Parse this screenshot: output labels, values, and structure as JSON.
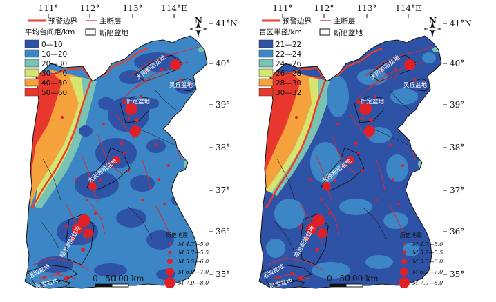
{
  "axes": {
    "lon_labels": [
      "111°",
      "112°",
      "113°",
      "114°E"
    ],
    "lat_labels": [
      "41°N",
      "40°",
      "39°",
      "38°",
      "37°",
      "36°",
      "35°"
    ]
  },
  "north_label": "N",
  "legend_common": {
    "warning_boundary": "预警边界",
    "main_fault": "主断层",
    "fault_basin": "断陷盆地"
  },
  "basins": [
    "大同断陷盆地",
    "灵丘盆地",
    "忻定盆地",
    "太原断陷盆地",
    "临汾断陷盆地",
    "运城盆地",
    "灵宝盆地"
  ],
  "eq_legend": {
    "title": "历史地震",
    "items": [
      "M 4.7—5.0",
      "M 5.7—5.5",
      "M 5.5—6.0",
      "M 6.0—7.0",
      "M 7.0—8.0"
    ]
  },
  "scale_bar": {
    "labels": [
      "0",
      "50",
      "100 km"
    ]
  },
  "panels": [
    {
      "title": "平均台间距/km",
      "classes": [
        {
          "label": "0—10",
          "color": "#2e52a6"
        },
        {
          "label": "10—20",
          "color": "#3d86c6"
        },
        {
          "label": "20—30",
          "color": "#79c3b3"
        },
        {
          "label": "30—40",
          "color": "#d6e470"
        },
        {
          "label": "40—50",
          "color": "#f5a23c"
        },
        {
          "label": "50—60",
          "color": "#e8372d"
        }
      ]
    },
    {
      "title": "盲区半径/km",
      "classes": [
        {
          "label": "21—22",
          "color": "#2e52a6"
        },
        {
          "label": "22—24",
          "color": "#3d86c6"
        },
        {
          "label": "24—26",
          "color": "#79c3b3"
        },
        {
          "label": "26—28",
          "color": "#d6e470"
        },
        {
          "label": "28—30",
          "color": "#f5a23c"
        },
        {
          "label": "30—32",
          "color": "#e8372d"
        }
      ]
    }
  ]
}
